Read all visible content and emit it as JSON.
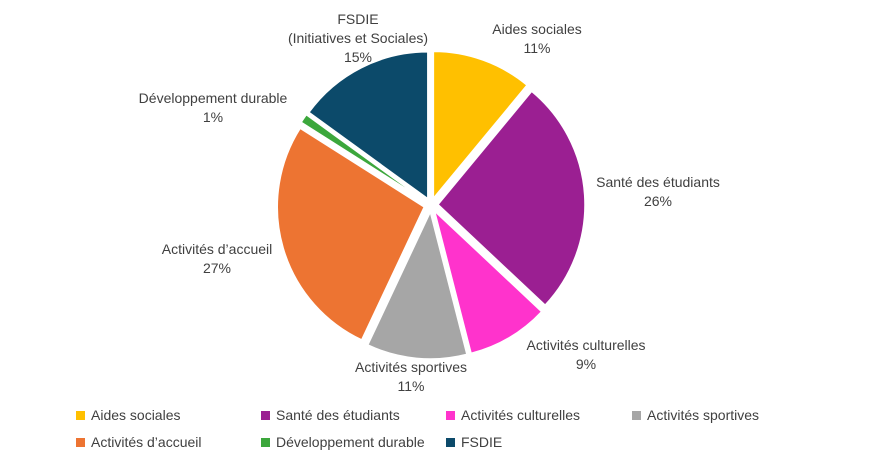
{
  "chart_data": {
    "type": "pie",
    "exploded": true,
    "start_angle_deg": 0,
    "direction": "clockwise",
    "legend_position": "bottom",
    "slices": [
      {
        "label": "Aides sociales",
        "value": 11,
        "value_label": "11%",
        "color": "#FFC000"
      },
      {
        "label": "Santé des étudiants",
        "value": 26,
        "value_label": "26%",
        "color": "#9B1F92"
      },
      {
        "label": "Activités culturelles",
        "value": 9,
        "value_label": "9%",
        "color": "#FF33CC"
      },
      {
        "label": "Activités sportives",
        "value": 11,
        "value_label": "11%",
        "color": "#A6A6A6"
      },
      {
        "label": "Activités d’accueil",
        "value": 27,
        "value_label": "27%",
        "color": "#ED7432"
      },
      {
        "label": "Développement durable",
        "value": 1,
        "value_label": "1%",
        "color": "#3CA73C"
      },
      {
        "label": "FSDIE",
        "value": 15,
        "value_label": "15%",
        "color": "#0C4A6A"
      }
    ],
    "data_label_fsdie_line2": "(Initiatives et Sociales)"
  }
}
